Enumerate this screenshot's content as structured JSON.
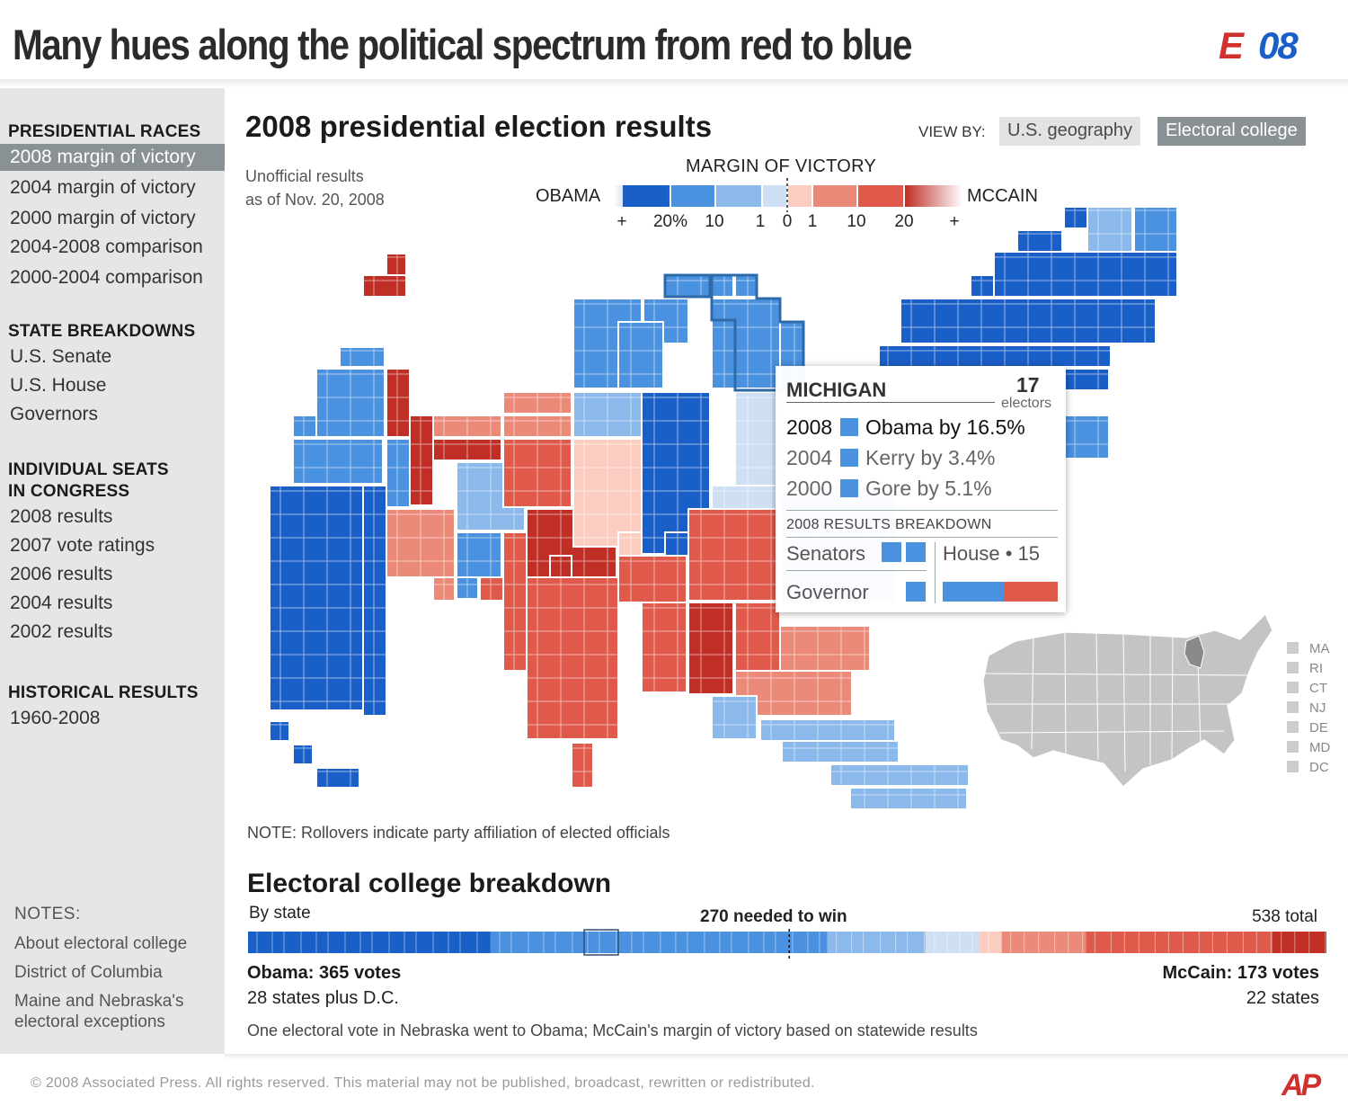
{
  "header": {
    "title": "Many hues along the political spectrum from red to blue",
    "logo": {
      "mark": "E",
      "year": "08",
      "red": "#d0312d",
      "blue": "#1a5fc8"
    }
  },
  "sidebar": {
    "sections": [
      {
        "heading": "PRESIDENTIAL RACES",
        "items": [
          "2008 margin of victory",
          "2004 margin of victory",
          "2000 margin of victory",
          "2004-2008 comparison",
          "2000-2004 comparison"
        ],
        "active": 0
      },
      {
        "heading": "STATE BREAKDOWNS",
        "items": [
          "U.S. Senate",
          "U.S. House",
          "Governors"
        ]
      },
      {
        "heading_lines": [
          "INDIVIDUAL SEATS",
          "IN CONGRESS"
        ],
        "items": [
          "2008 results",
          "2007 vote ratings",
          "2006 results",
          "2004 results",
          "2002 results"
        ]
      },
      {
        "heading": "HISTORICAL RESULTS",
        "items": [
          "1960-2008"
        ]
      }
    ],
    "notes": {
      "heading": "NOTES:",
      "items": [
        "About electoral college",
        "District of Columbia",
        "Maine and Nebraska's electoral exceptions"
      ]
    }
  },
  "main": {
    "title": "2008 presidential election results",
    "view_by": {
      "label": "VIEW BY:",
      "options": [
        "U.S. geography",
        "Electoral college"
      ],
      "selected": "Electoral college"
    },
    "unofficial": [
      "Unofficial results",
      "as of Nov. 20, 2008"
    ],
    "note": "NOTE: Rollovers indicate party affiliation of elected officials"
  },
  "legend": {
    "title": "MARGIN OF VICTORY",
    "left": "OBAMA",
    "right": "MCCAIN",
    "ticks": [
      "+",
      "20%",
      "10",
      "1",
      "0",
      "1",
      "10",
      "20",
      "+"
    ],
    "colors": {
      "d4": "#1a5fc8",
      "d3": "#4a91e0",
      "d2": "#8bb9ec",
      "d1": "#cfe0f5",
      "r1": "#fbcdc0",
      "r2": "#ec8a79",
      "r3": "#df5a4a",
      "r4": "#bf2f26"
    }
  },
  "tooltip": {
    "state": "MICHIGAN",
    "electors": "17",
    "electors_label": "electors",
    "history": [
      {
        "year": "2008",
        "result": "Obama by 16.5%"
      },
      {
        "year": "2004",
        "result": "Kerry by 3.4%"
      },
      {
        "year": "2000",
        "result": "Gore by 5.1%"
      }
    ],
    "breakdown_title": "2008 RESULTS BREAKDOWN",
    "senators_label": "Senators",
    "house_label": "House • 15",
    "governor_label": "Governor",
    "house_split": {
      "dem": 8,
      "rep": 7
    }
  },
  "small_states": [
    "MA",
    "RI",
    "CT",
    "NJ",
    "DE",
    "MD",
    "DC"
  ],
  "electoral": {
    "title": "Electoral college breakdown",
    "by_state": "By state",
    "needed": "270 needed to win",
    "total": "538 total",
    "obama": "Obama: 365 votes",
    "obama_sub": "28 states plus D.C.",
    "mccain": "McCain: 173 votes",
    "mccain_sub": "22 states",
    "footnote": "One electoral vote in Nebraska went to Obama; McCain's margin of victory based on statewide results",
    "segments": [
      [
        "d4",
        121
      ],
      [
        "d3",
        168
      ],
      [
        "d2",
        49
      ],
      [
        "d1",
        27
      ],
      [
        "r1",
        11
      ],
      [
        "r2",
        42
      ],
      [
        "r3",
        93
      ],
      [
        "r4",
        27
      ]
    ]
  },
  "footer": {
    "copyright": "©  2008 Associated Press. All rights reserved. This material may not be published, broadcast, rewritten or redistributed.",
    "logo": "AP"
  }
}
